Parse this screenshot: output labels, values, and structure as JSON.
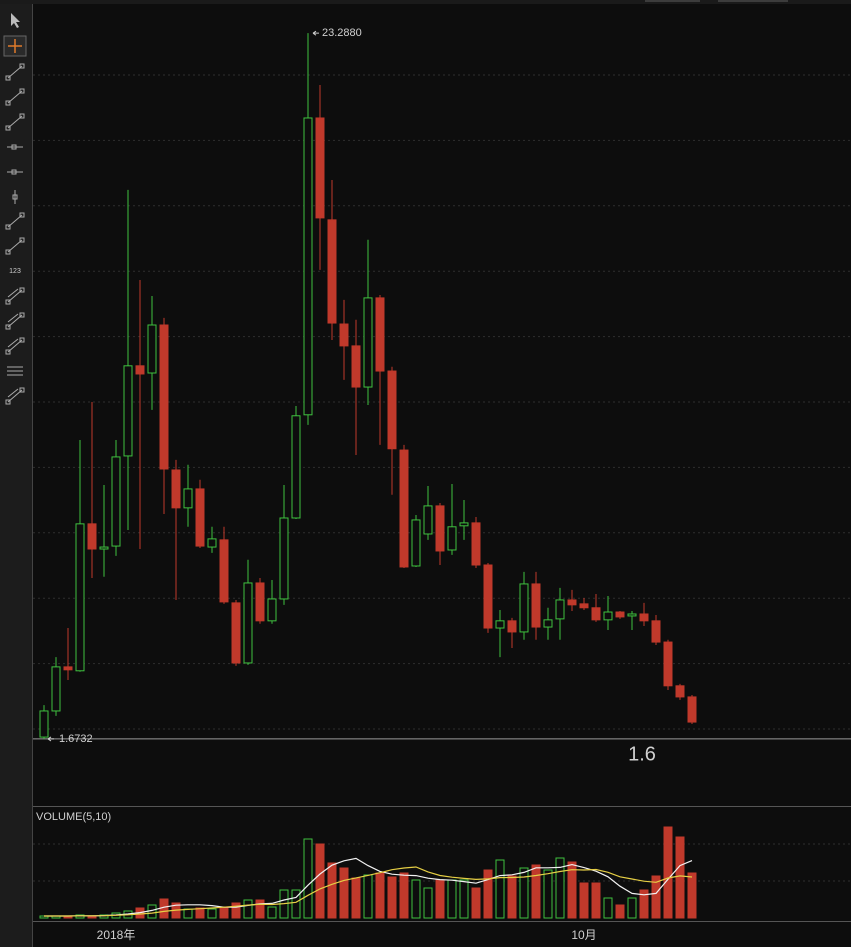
{
  "chart_data": {
    "type": "candlestick",
    "categories": [
      null,
      null,
      null,
      null,
      null,
      null,
      "2018年",
      null,
      null,
      null,
      null,
      null,
      null,
      null,
      null,
      null,
      null,
      null,
      null,
      null,
      null,
      null,
      null,
      null,
      null,
      null,
      null,
      null,
      null,
      null,
      null,
      null,
      null,
      null,
      null,
      null,
      null,
      null,
      null,
      null,
      null,
      null,
      null,
      null,
      null,
      "10月",
      null,
      null,
      null,
      null,
      null,
      null,
      null,
      null,
      null
    ],
    "open": [
      1.73,
      2.53,
      3.88,
      3.76,
      8.26,
      7.49,
      7.58,
      10.34,
      13.1,
      12.88,
      14.35,
      9.91,
      8.75,
      9.33,
      7.55,
      7.77,
      5.84,
      4.0,
      6.45,
      5.29,
      5.96,
      8.44,
      11.6,
      20.69,
      17.57,
      14.38,
      13.71,
      12.45,
      15.18,
      12.94,
      10.52,
      6.97,
      7.95,
      8.81,
      7.46,
      8.2,
      8.29,
      7.0,
      5.07,
      5.29,
      4.95,
      6.42,
      5.1,
      5.35,
      5.93,
      5.81,
      5.69,
      5.32,
      5.56,
      5.44,
      5.5,
      5.29,
      4.64,
      3.3,
      2.96
    ],
    "high": [
      2.71,
      4.18,
      5.07,
      10.83,
      11.99,
      9.45,
      10.83,
      18.49,
      15.73,
      15.24,
      14.57,
      10.22,
      10.07,
      9.61,
      8.17,
      8.17,
      5.93,
      7.16,
      6.6,
      6.54,
      9.45,
      11.87,
      23.288,
      21.7,
      18.79,
      15.12,
      14.51,
      16.96,
      15.27,
      13.07,
      10.68,
      8.53,
      9.42,
      8.9,
      9.48,
      8.99,
      8.47,
      7.06,
      5.62,
      5.38,
      6.79,
      6.79,
      5.69,
      6.3,
      6.24,
      5.99,
      6.11,
      6.05,
      5.59,
      5.59,
      5.84,
      5.47,
      4.71,
      3.36,
      3.02
    ],
    "low": [
      1.6732,
      2.38,
      3.48,
      3.73,
      6.6,
      6.64,
      7.28,
      8.07,
      7.49,
      11.75,
      8.56,
      5.93,
      8.17,
      7.52,
      7.37,
      5.81,
      3.91,
      3.94,
      5.2,
      5.2,
      5.78,
      8.41,
      11.29,
      16.04,
      13.89,
      12.67,
      10.37,
      11.9,
      10.68,
      9.15,
      6.91,
      6.94,
      7.77,
      7.0,
      7.31,
      7.77,
      6.91,
      4.92,
      4.18,
      4.46,
      4.71,
      4.71,
      4.71,
      4.71,
      5.59,
      5.62,
      5.26,
      5.01,
      5.35,
      5.01,
      5.13,
      4.55,
      3.17,
      2.87,
      2.13
    ],
    "close": [
      2.53,
      3.88,
      3.79,
      8.26,
      7.49,
      7.55,
      10.31,
      13.1,
      12.85,
      14.35,
      9.94,
      8.75,
      9.33,
      7.58,
      7.8,
      5.87,
      4.0,
      6.45,
      5.29,
      5.96,
      8.44,
      11.57,
      20.69,
      17.63,
      14.41,
      13.71,
      12.45,
      15.18,
      12.94,
      10.56,
      6.94,
      8.38,
      8.81,
      7.43,
      8.17,
      8.29,
      7.0,
      5.07,
      5.29,
      4.95,
      6.42,
      5.1,
      5.32,
      5.93,
      5.78,
      5.69,
      5.32,
      5.56,
      5.41,
      5.5,
      5.29,
      4.64,
      3.3,
      2.96,
      2.19
    ],
    "ylim": [
      -0.35,
      24.15
    ],
    "up_color": "#3fc13f",
    "down_color": "#c0392b",
    "max_label": "23.2880",
    "min_label": "1.6732",
    "price_label": "1.6",
    "price_label_color": "#e2322a",
    "volume": {
      "name": "VOLUME(5,10)",
      "values": [
        2,
        2,
        2,
        3,
        2,
        3,
        5,
        7,
        10,
        13,
        19,
        15,
        9,
        10,
        9,
        11,
        15,
        18,
        18,
        11,
        28,
        28,
        79,
        74,
        55,
        50,
        40,
        43,
        45,
        41,
        45,
        38,
        30,
        38,
        38,
        38,
        30,
        48,
        58,
        42,
        50,
        53,
        48,
        60,
        56,
        35,
        35,
        20,
        13,
        20,
        28,
        42,
        91,
        81,
        45
      ],
      "ylim": [
        0,
        100
      ],
      "ma_colors": [
        "#f2f2f2",
        "#e6cf45"
      ]
    },
    "toolbar_label": "123"
  }
}
